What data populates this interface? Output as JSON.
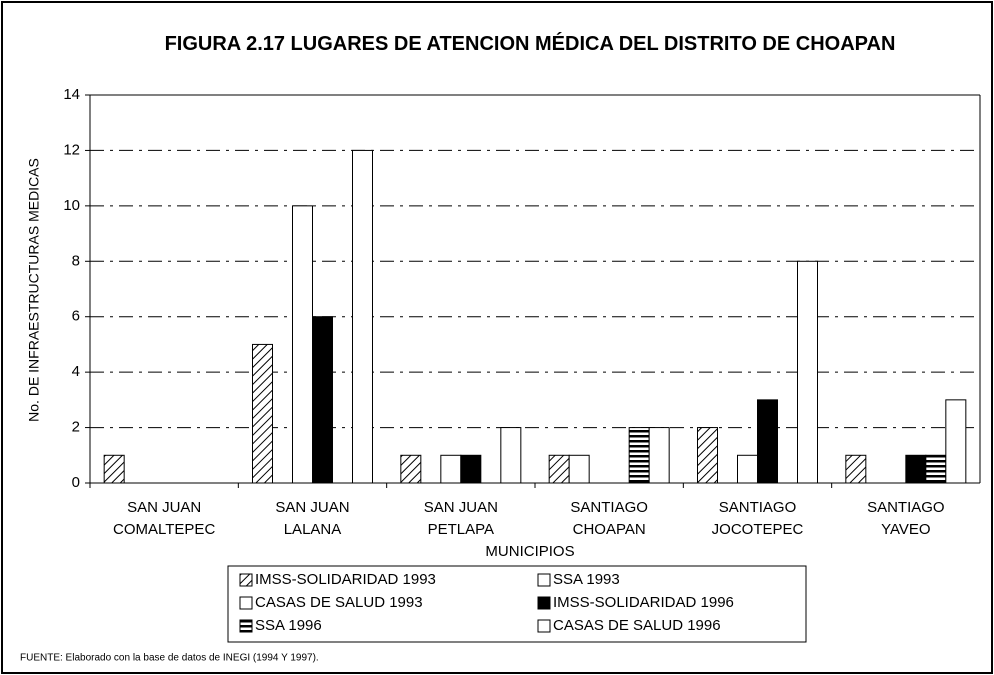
{
  "chart_data": {
    "type": "bar",
    "title": "FIGURA 2.17 LUGARES DE ATENCION  MÉDICA DEL DISTRITO DE CHOAPAN",
    "x_label": "MUNICIPIOS",
    "y_label": "No. DE INFRAESTRUCTURAS MEDICAS",
    "categories": [
      [
        "SAN JUAN",
        "COMALTEPEC"
      ],
      [
        "SAN JUAN",
        "LALANA"
      ],
      [
        "SAN  JUAN",
        "PETLAPA"
      ],
      [
        "SANTIAGO",
        "CHOAPAN"
      ],
      [
        "SANTIAGO",
        "JOCOTEPEC"
      ],
      [
        "SANTIAGO",
        "YAVEO"
      ]
    ],
    "series": [
      {
        "name": "IMSS-SOLIDARIDAD 1993",
        "color": "#ffffff",
        "pattern": "diagonal",
        "values": [
          1,
          5,
          1,
          1,
          2,
          1
        ]
      },
      {
        "name": "SSA 1993",
        "color": "#ffffff",
        "pattern": null,
        "values": [
          0,
          0,
          0,
          1,
          0,
          0
        ]
      },
      {
        "name": "CASAS DE SALUD 1993",
        "color": "#ffffff",
        "pattern": null,
        "values": [
          0,
          10,
          1,
          0,
          1,
          0
        ]
      },
      {
        "name": "IMSS-SOLIDARIDAD 1996",
        "color": "#000000",
        "pattern": null,
        "values": [
          0,
          6,
          1,
          0,
          3,
          1
        ]
      },
      {
        "name": "SSA 1996",
        "color": "#ffffff",
        "pattern": "horizontal",
        "values": [
          0,
          0,
          0,
          2,
          0,
          1
        ]
      },
      {
        "name": "CASAS DE SALUD 1996",
        "color": "#ffffff",
        "pattern": null,
        "values": [
          0,
          12,
          2,
          2,
          8,
          3
        ]
      }
    ],
    "ylim": [
      0,
      14
    ],
    "yticks": [
      0,
      2,
      4,
      6,
      8,
      10,
      12,
      14
    ],
    "grid": true,
    "source": "FUENTE: Elaborado con la base de datos de INEGI (1994 Y 1997)."
  }
}
